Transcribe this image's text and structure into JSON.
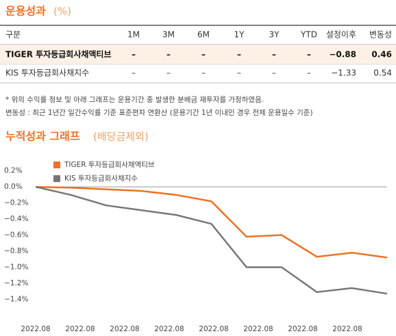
{
  "header": {
    "title": "운용성과",
    "unit": "(%)"
  },
  "table": {
    "columns": [
      "구분",
      "1M",
      "3M",
      "6M",
      "1Y",
      "3Y",
      "YTD",
      "설정이후",
      "변동성"
    ],
    "rows": [
      [
        "TIGER 투자등급회사채액티브",
        "–",
        "–",
        "–",
        "–",
        "–",
        "–",
        "−0.88",
        "0.46"
      ],
      [
        "KIS 투자등급회사채지수",
        "–",
        "–",
        "–",
        "–",
        "–",
        "–",
        "−1.33",
        "0.54"
      ]
    ]
  },
  "notes": [
    "* 위의 수익률 정보 및 아래 그래프는 운용기간 중 발생한 분배금 재투자를 가정하였음.",
    "변동성 : 최근 1년간 일간수익률 기준 표준편차 연환산 (운용기간 1년 이내인 경우 전체 운용일수 기준)"
  ],
  "chart_data": {
    "type": "line",
    "title": "누적성과 그래프",
    "subtitle": "(배당금제외)",
    "x_tick_labels": [
      "2022.08",
      "2022.08",
      "2022.08",
      "2022.08",
      "2022.08",
      "2022.08",
      "2022.08",
      "2022.08"
    ],
    "series": [
      {
        "name": "TIGER 투자등급회사채액티브",
        "color": "#f07020",
        "values": [
          0,
          -0.01,
          -0.03,
          -0.05,
          -0.1,
          -0.18,
          -0.62,
          -0.6,
          -0.87,
          -0.82,
          -0.88
        ]
      },
      {
        "name": "KIS 투자등급회사채지수",
        "color": "#777777",
        "values": [
          0,
          -0.1,
          -0.23,
          -0.29,
          -0.35,
          -0.46,
          -1.0,
          -1.0,
          -1.31,
          -1.26,
          -1.33
        ]
      }
    ],
    "ylim": [
      -1.55,
      0.35
    ],
    "yticks": [
      {
        "value": 0.2,
        "label": "0.2%"
      },
      {
        "value": 0,
        "label": "0.0%"
      },
      {
        "value": -0.2,
        "label": "−0.2%"
      },
      {
        "value": -0.4,
        "label": "−0.4%"
      },
      {
        "value": -0.6,
        "label": "−0.6%"
      },
      {
        "value": -0.8,
        "label": "−0.8%"
      },
      {
        "value": -1.0,
        "label": "−1.0%"
      },
      {
        "value": -1.2,
        "label": "−1.2%"
      },
      {
        "value": -1.4,
        "label": "−1.4%"
      }
    ],
    "grid": false,
    "legend": "upper left"
  }
}
